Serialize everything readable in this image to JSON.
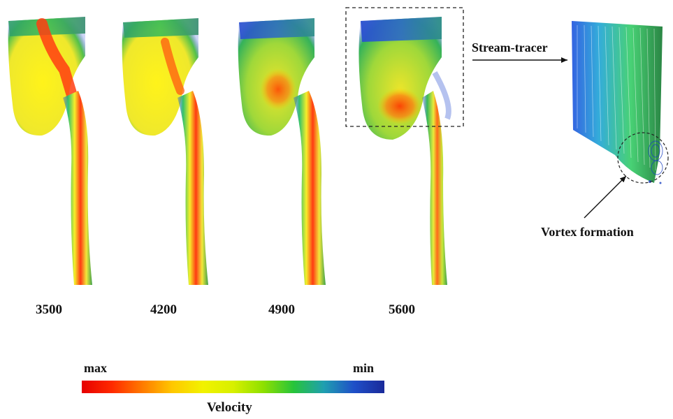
{
  "samples": [
    {
      "label": "3500"
    },
    {
      "label": "4200"
    },
    {
      "label": "4900"
    },
    {
      "label": "5600"
    }
  ],
  "annotations": {
    "stream_tracer": "Stream-tracer",
    "vortex": "Vortex formation"
  },
  "scale": {
    "max_label": "max",
    "min_label": "min",
    "title": "Velocity",
    "colors": [
      "#e60000",
      "#ff2a00",
      "#ff7a00",
      "#ffc800",
      "#f2f200",
      "#d8f000",
      "#8ee000",
      "#27c43a",
      "#1f9fb0",
      "#1f4fc8",
      "#1a2a9a"
    ]
  }
}
